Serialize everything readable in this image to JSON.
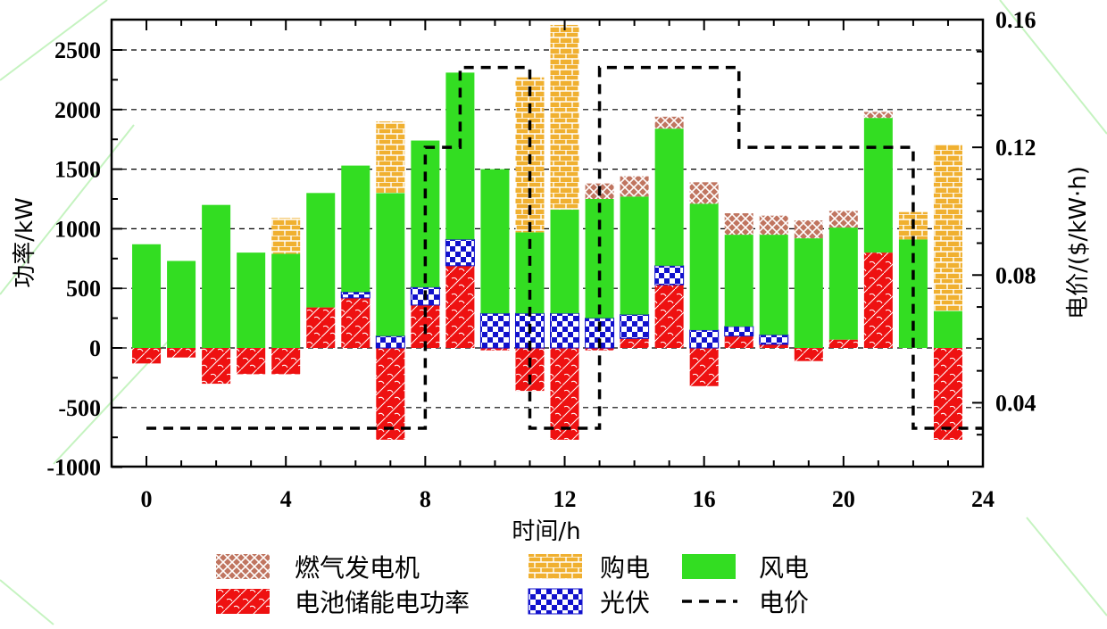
{
  "chart_data": {
    "type": "bar",
    "stacked": true,
    "x": [
      0,
      1,
      2,
      3,
      4,
      5,
      6,
      7,
      8,
      9,
      10,
      11,
      12,
      13,
      14,
      15,
      16,
      17,
      18,
      19,
      20,
      21,
      22,
      23
    ],
    "x_ticks": [
      "0",
      "4",
      "8",
      "12",
      "16",
      "20",
      "24"
    ],
    "xlim": [
      -1,
      24
    ],
    "y_ticks": [
      "-1000",
      "-500",
      "0",
      "500",
      "1000",
      "1500",
      "2000",
      "2500"
    ],
    "ylim": [
      -1000,
      2500
    ],
    "y2_ticks": [
      "0.04",
      "0.08",
      "0.12",
      "0.16"
    ],
    "y2lim": [
      0.02,
      0.16
    ],
    "xlabel": "时间/h",
    "ylabel": "功率/kW",
    "y2label": "电价/($/kW·h)",
    "grid": "horizontal dashed",
    "legend_position": "bottom",
    "series": [
      {
        "name": "燃气发电机",
        "color": "#c07560",
        "values": [
          0,
          0,
          0,
          0,
          0,
          0,
          0,
          0,
          0,
          0,
          0,
          0,
          0,
          130,
          170,
          100,
          180,
          180,
          160,
          150,
          140,
          50,
          0,
          0
        ]
      },
      {
        "name": "购电",
        "color": "#f0b030",
        "values": [
          0,
          0,
          0,
          0,
          300,
          0,
          0,
          600,
          0,
          0,
          0,
          1300,
          1550,
          0,
          0,
          0,
          0,
          0,
          0,
          0,
          0,
          0,
          230,
          1400
        ]
      },
      {
        "name": "风电",
        "color": "#33dd22",
        "values": [
          870,
          730,
          1200,
          800,
          790,
          960,
          1060,
          1200,
          1230,
          1400,
          1210,
          680,
          870,
          1000,
          990,
          1150,
          1060,
          770,
          840,
          920,
          940,
          1130,
          910,
          310
        ]
      },
      {
        "name": "电池储能电功率",
        "color": "#ee1111",
        "values": [
          -130,
          -80,
          -300,
          -220,
          -220,
          340,
          420,
          -770,
          360,
          690,
          -20,
          -360,
          -770,
          -20,
          80,
          530,
          -320,
          100,
          30,
          -110,
          70,
          800,
          0,
          -770
        ]
      },
      {
        "name": "光伏",
        "color": "#1111cc",
        "values": [
          0,
          0,
          0,
          0,
          0,
          0,
          50,
          100,
          150,
          220,
          290,
          290,
          290,
          250,
          200,
          160,
          150,
          80,
          80,
          0,
          0,
          0,
          0,
          0
        ]
      },
      {
        "name": "电价",
        "color": "#000000",
        "axis": "right",
        "values": [
          0.032,
          0.032,
          0.032,
          0.032,
          0.032,
          0.032,
          0.032,
          0.032,
          0.12,
          0.145,
          0.145,
          0.032,
          0.032,
          0.145,
          0.145,
          0.145,
          0.145,
          0.12,
          0.12,
          0.12,
          0.12,
          0.12,
          0.032,
          0.032
        ]
      }
    ]
  }
}
